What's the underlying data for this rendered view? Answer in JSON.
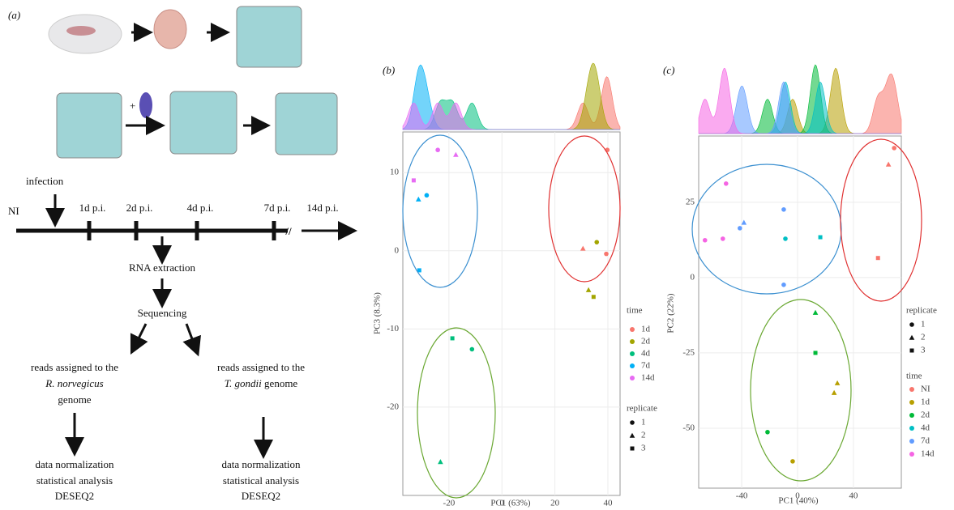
{
  "panel_a": {
    "label": "(a)",
    "infection": "infection",
    "timeline": [
      "NI",
      "1d p.i.",
      "2d p.i.",
      "4d p.i.",
      "7d p.i.",
      "14d p.i."
    ],
    "steps": [
      "RNA extraction",
      "Sequencing"
    ],
    "left_reads": {
      "line1": "reads assigned to the",
      "species": "R. norvegicus",
      "line3": "genome"
    },
    "right_reads": {
      "line1": "reads assigned to the",
      "species": "T. gondii",
      "suffix": " genome"
    },
    "left_analysis": [
      "data normalization",
      "statistical analysis",
      "DESEQ2"
    ],
    "right_analysis": [
      "data normalization",
      "statistical analysis",
      "DESEQ2"
    ]
  },
  "chart_data": [
    {
      "type": "scatter",
      "panel_label": "(b)",
      "x_label": "PC1 (63%)",
      "y_label": "PC3 (8.3%)",
      "xlim": [
        -37.4,
        44.6
      ],
      "ylim": [
        -31.3,
        15.2
      ],
      "xticks": [
        -20,
        0,
        20,
        40
      ],
      "yticks": [
        -20,
        -10,
        0,
        10
      ],
      "grid": true,
      "color_legend_title": "time",
      "shape_legend": {
        "title": "replicate",
        "labels": [
          "1",
          "2",
          "3"
        ]
      },
      "series": [
        {
          "name": "1d",
          "color": "#f8766d",
          "x": [
            39.8,
            30.6,
            39.4
          ],
          "values": [
            12.9,
            0.3,
            -0.4
          ],
          "replicate": [
            1,
            2,
            1
          ]
        },
        {
          "name": "2d",
          "color": "#a3a500",
          "x": [
            35.8,
            32.7,
            34.6
          ],
          "values": [
            1.1,
            -5.0,
            -5.9
          ],
          "replicate": [
            1,
            2,
            3
          ]
        },
        {
          "name": "4d",
          "color": "#00bf7d",
          "x": [
            -18.7,
            -11.3,
            -23.2
          ],
          "values": [
            -11.2,
            -12.6,
            -27.0
          ],
          "replicate": [
            3,
            1,
            2
          ]
        },
        {
          "name": "7d",
          "color": "#00b0f6",
          "x": [
            -28.4,
            -31.5,
            -31.2
          ],
          "values": [
            7.1,
            6.6,
            -2.5
          ],
          "replicate": [
            1,
            2,
            3
          ]
        },
        {
          "name": "14d",
          "color": "#e76bf3",
          "x": [
            -24.2,
            -17.4,
            -33.3
          ],
          "values": [
            12.9,
            12.3,
            9.0
          ],
          "replicate": [
            1,
            2,
            3
          ]
        }
      ]
    },
    {
      "type": "scatter",
      "panel_label": "(c)",
      "x_label": "PC1 (40%)",
      "y_label": "PC2 (22%)",
      "xlim": [
        -70.8,
        74.3
      ],
      "ylim": [
        -69.9,
        47
      ],
      "xticks": [
        -40,
        0,
        40
      ],
      "yticks": [
        -50,
        -25,
        0,
        25
      ],
      "grid": true,
      "color_legend_title": "time",
      "shape_legend": {
        "title": "replicate",
        "labels": [
          "1",
          "2",
          "3"
        ]
      },
      "series": [
        {
          "name": "NI",
          "color": "#f8766d",
          "x": [
            69.2,
            65.1,
            57.6
          ],
          "values": [
            43.0,
            37.6,
            6.5
          ],
          "replicate": [
            1,
            2,
            3
          ]
        },
        {
          "name": "1d",
          "color": "#b79f00",
          "x": [
            28.5,
            26.2,
            -3.5
          ],
          "values": [
            -35.0,
            -38.2,
            -61.0
          ],
          "replicate": [
            2,
            2,
            1
          ]
        },
        {
          "name": "2d",
          "color": "#00ba38",
          "x": [
            12.8,
            12.8,
            -21.5
          ],
          "values": [
            -11.6,
            -25,
            -51.3
          ],
          "replicate": [
            2,
            3,
            1
          ]
        },
        {
          "name": "4d",
          "color": "#00bfc4",
          "x": [
            -8.7,
            16.3
          ],
          "values": [
            12.9,
            13.4
          ],
          "replicate": [
            1,
            3
          ]
        },
        {
          "name": "7d",
          "color": "#619cff",
          "x": [
            -38.4,
            -41.3,
            -9.9,
            -9.9
          ],
          "values": [
            18.3,
            16.4,
            22.6,
            -2.4
          ],
          "replicate": [
            2,
            1,
            1,
            1
          ]
        },
        {
          "name": "14d",
          "color": "#f564e3",
          "x": [
            -51.2,
            -66.3,
            -53.5
          ],
          "values": [
            31.2,
            12.4,
            12.9
          ],
          "replicate": [
            1,
            1,
            1
          ]
        }
      ]
    }
  ]
}
